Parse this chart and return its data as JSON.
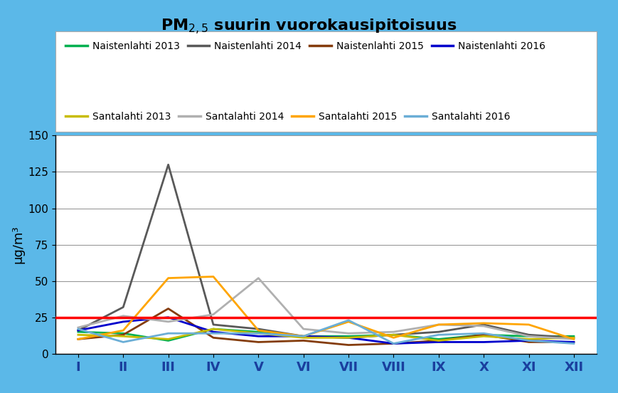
{
  "title_line1": "PM",
  "title_sub": "2,5",
  "title_line2": " suurin vuorokausipitoisuus",
  "ylabel": "µg/m³",
  "background_color": "#5bb8e8",
  "plot_bg_color": "#ffffff",
  "legend_bg_color": "#ffffff",
  "ylim": [
    0,
    150
  ],
  "yticks": [
    0,
    25,
    50,
    75,
    100,
    125,
    150
  ],
  "months": [
    "I",
    "II",
    "III",
    "IV",
    "V",
    "VI",
    "VII",
    "VIII",
    "IX",
    "X",
    "XI",
    "XII"
  ],
  "threshold": 25,
  "threshold_color": "#ff0000",
  "series": [
    {
      "label": "Naistenlahti 2013",
      "color": "#00b050",
      "values": [
        15,
        14,
        9,
        17,
        15,
        12,
        12,
        13,
        10,
        13,
        12,
        12
      ]
    },
    {
      "label": "Naistenlahti 2014",
      "color": "#595959",
      "values": [
        16,
        32,
        130,
        20,
        17,
        12,
        11,
        13,
        15,
        20,
        13,
        11
      ]
    },
    {
      "label": "Naistenlahti 2015",
      "color": "#843c0c",
      "values": [
        10,
        13,
        31,
        11,
        8,
        9,
        6,
        7,
        9,
        13,
        8,
        8
      ]
    },
    {
      "label": "Naistenlahti 2016",
      "color": "#0000cc",
      "values": [
        16,
        22,
        25,
        15,
        12,
        12,
        11,
        7,
        8,
        8,
        9,
        8
      ]
    },
    {
      "label": "Santalahti 2013",
      "color": "#c8bc00",
      "values": [
        13,
        12,
        10,
        17,
        14,
        11,
        11,
        13,
        9,
        12,
        10,
        11
      ]
    },
    {
      "label": "Santalahti 2014",
      "color": "#b0b0b0",
      "values": [
        18,
        26,
        22,
        27,
        52,
        17,
        14,
        15,
        20,
        19,
        12,
        10
      ]
    },
    {
      "label": "Santalahti 2015",
      "color": "#ffa500",
      "values": [
        10,
        16,
        52,
        53,
        16,
        12,
        22,
        11,
        20,
        21,
        20,
        10
      ]
    },
    {
      "label": "Santalahti 2016",
      "color": "#6baed6",
      "values": [
        17,
        8,
        14,
        14,
        14,
        12,
        23,
        7,
        13,
        14,
        9,
        7
      ]
    }
  ]
}
